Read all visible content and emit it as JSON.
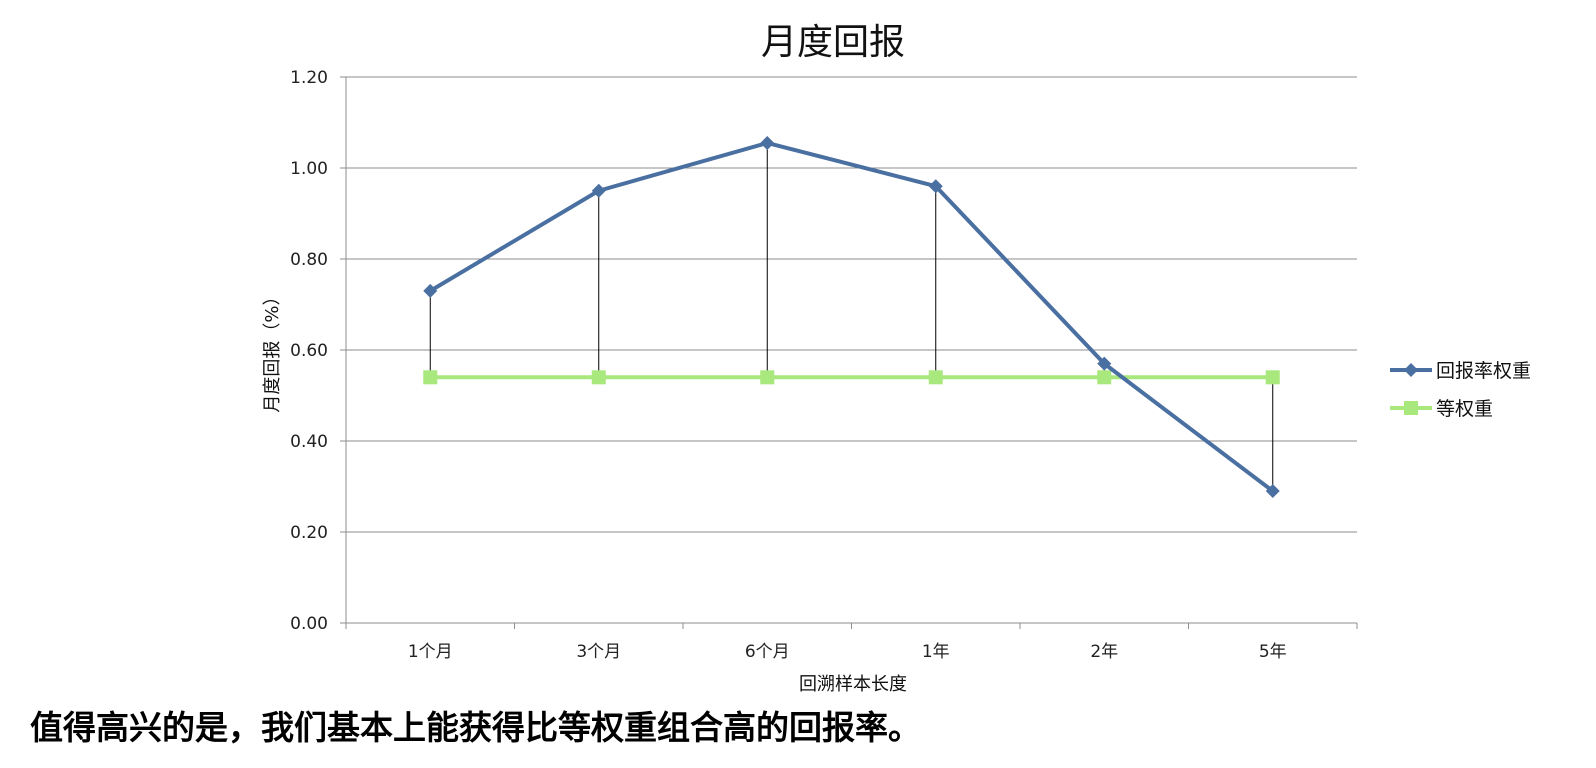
{
  "caption": "值得高兴的是，我们基本上能获得比等权重组合高的回报率。",
  "chart_data": {
    "type": "line",
    "title": "月度回报",
    "xlabel": "回溯样本长度",
    "ylabel": "月度回报（%）",
    "categories": [
      "1个月",
      "3个月",
      "6个月",
      "1年",
      "2年",
      "5年"
    ],
    "ylim": [
      0,
      1.2
    ],
    "yticks": [
      "0.00",
      "0.20",
      "0.40",
      "0.60",
      "0.80",
      "1.00",
      "1.20"
    ],
    "grid": true,
    "legend_position": "right",
    "drop_lines": true,
    "series": [
      {
        "name": "回报率权重",
        "values": [
          0.73,
          0.95,
          1.055,
          0.96,
          0.57,
          0.29
        ],
        "color": "#4a6fa1",
        "marker": "diamond"
      },
      {
        "name": "等权重",
        "values": [
          0.54,
          0.54,
          0.54,
          0.54,
          0.54,
          0.54
        ],
        "color": "#a8e87d",
        "marker": "square"
      }
    ]
  }
}
